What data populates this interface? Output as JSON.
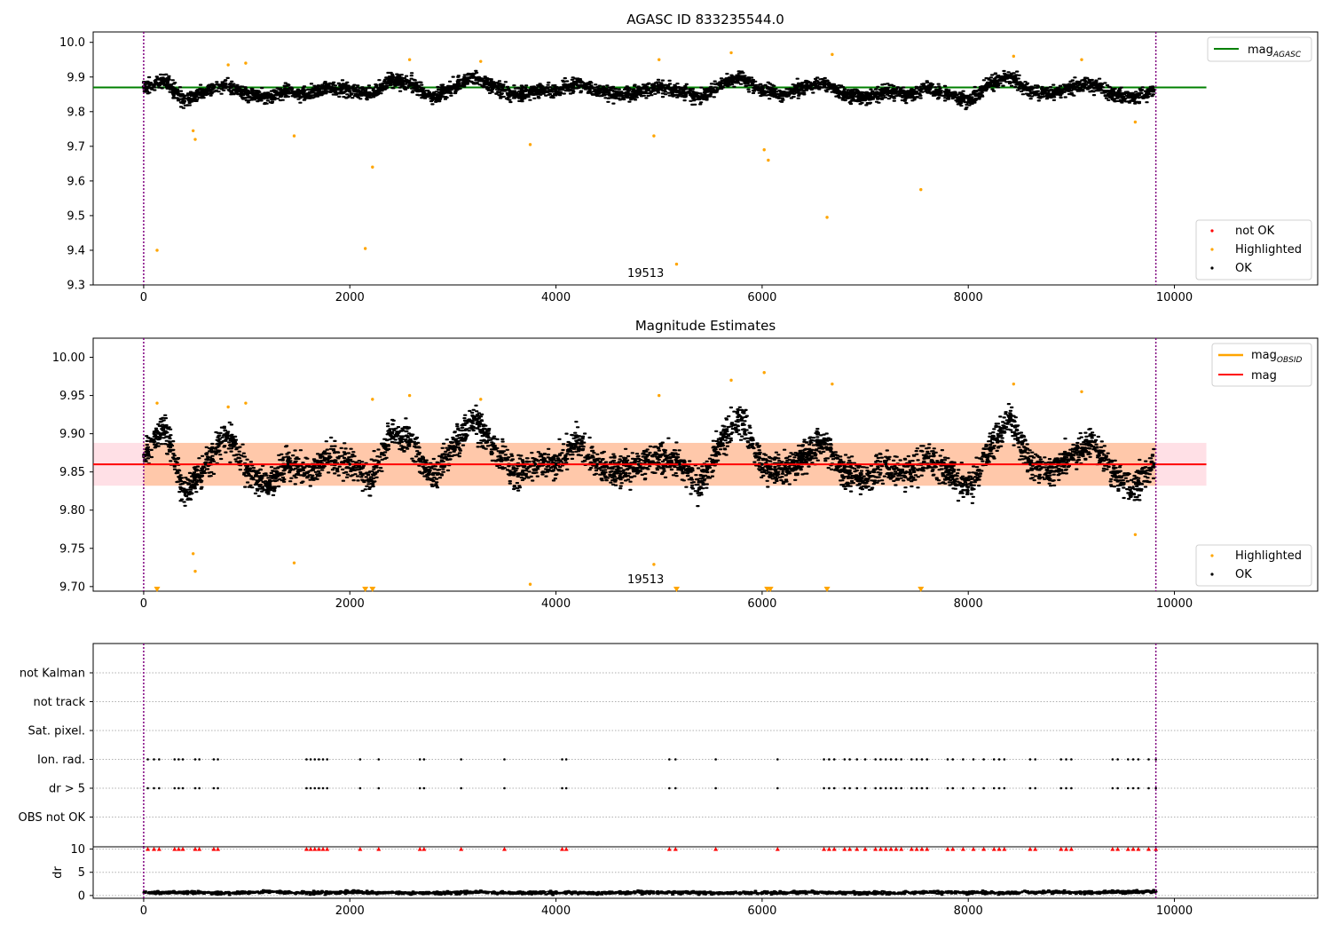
{
  "chart_data": [
    {
      "type": "scatter",
      "title": "AGASC ID 833235544.0",
      "xlim": [
        -490,
        11390
      ],
      "ylim": [
        9.3,
        10.03
      ],
      "xticks": [
        0,
        2000,
        4000,
        6000,
        8000,
        10000
      ],
      "yticks": [
        9.3,
        9.4,
        9.5,
        9.6,
        9.7,
        9.8,
        9.9,
        10.0
      ],
      "ytick_labels": [
        "9.3",
        "9.4",
        "9.5",
        "9.6",
        "9.7",
        "9.8",
        "9.9",
        "10.0"
      ],
      "vlines": [
        0,
        9820
      ],
      "obsid_label": "19513",
      "obsid_label_x": 4870,
      "hlines": [
        {
          "name": "mag_AGASC",
          "y": 9.87,
          "x_range": [
            -490,
            10310
          ],
          "color": "#008000"
        }
      ],
      "legend_upper": {
        "position": "upper-right",
        "entries": [
          {
            "label": "mag",
            "sub": "AGASC",
            "color": "#008000"
          }
        ]
      },
      "legend_lower": {
        "position": "lower-right",
        "entries": [
          {
            "label": "not OK",
            "color": "#ff0000"
          },
          {
            "label": "Highlighted",
            "color": "#ffa500"
          },
          {
            "label": "OK",
            "color": "#000000"
          }
        ]
      },
      "series": [
        {
          "name": "OK",
          "color": "#000000",
          "x": [
            0,
            200,
            400,
            600,
            800,
            1000,
            1200,
            1400,
            1600,
            1800,
            2000,
            2200,
            2400,
            2600,
            2800,
            3000,
            3200,
            3400,
            3600,
            3800,
            4000,
            4200,
            4400,
            4600,
            4800,
            5000,
            5200,
            5400,
            5600,
            5800,
            6000,
            6200,
            6400,
            6600,
            6800,
            7000,
            7200,
            7400,
            7600,
            7800,
            8000,
            8200,
            8400,
            8600,
            8800,
            9000,
            9200,
            9400,
            9600,
            9800
          ],
          "y": [
            9.87,
            9.89,
            9.83,
            9.86,
            9.88,
            9.85,
            9.84,
            9.86,
            9.85,
            9.87,
            9.86,
            9.85,
            9.89,
            9.88,
            9.84,
            9.87,
            9.9,
            9.87,
            9.85,
            9.86,
            9.86,
            9.88,
            9.86,
            9.85,
            9.86,
            9.87,
            9.86,
            9.84,
            9.88,
            9.9,
            9.86,
            9.85,
            9.87,
            9.88,
            9.85,
            9.84,
            9.86,
            9.85,
            9.87,
            9.85,
            9.83,
            9.88,
            9.9,
            9.86,
            9.85,
            9.87,
            9.88,
            9.85,
            9.84,
            9.86
          ]
        },
        {
          "name": "Highlighted",
          "color": "#ffa500",
          "x": [
            130,
            480,
            500,
            820,
            990,
            1460,
            2150,
            2220,
            2580,
            3270,
            3750,
            4950,
            5000,
            5170,
            5700,
            6020,
            6060,
            6630,
            6680,
            7540,
            8440,
            9100,
            9620
          ],
          "y": [
            9.4,
            9.745,
            9.72,
            9.935,
            9.94,
            9.73,
            9.405,
            9.64,
            9.95,
            9.945,
            9.705,
            9.73,
            9.95,
            9.36,
            9.97,
            9.69,
            9.66,
            9.495,
            9.965,
            9.575,
            9.96,
            9.95,
            9.77
          ]
        },
        {
          "name": "not OK",
          "color": "#ff0000",
          "x": [],
          "y": []
        }
      ]
    },
    {
      "type": "scatter",
      "title": "Magnitude Estimates",
      "xlim": [
        -490,
        11390
      ],
      "ylim": [
        9.694,
        10.025
      ],
      "xticks": [
        0,
        2000,
        4000,
        6000,
        8000,
        10000
      ],
      "yticks": [
        9.7,
        9.75,
        9.8,
        9.85,
        9.9,
        9.95,
        10.0
      ],
      "ytick_labels": [
        "9.70",
        "9.75",
        "9.80",
        "9.85",
        "9.90",
        "9.95",
        "10.00"
      ],
      "vlines": [
        0,
        9820
      ],
      "obsid_label": "19513",
      "obsid_label_x": 4870,
      "band": {
        "x_range": [
          0,
          9820
        ],
        "y_range": [
          9.832,
          9.888
        ],
        "color": "#ffc8aa"
      },
      "band_outer": {
        "x_range": [
          -490,
          10310
        ],
        "y_range": [
          9.832,
          9.888
        ],
        "color": "#ffe0e6"
      },
      "hlines": [
        {
          "name": "mag",
          "y": 9.86,
          "x_range": [
            -490,
            10310
          ],
          "color": "#ff0000"
        }
      ],
      "legend_upper": {
        "position": "upper-right",
        "entries": [
          {
            "label": "mag",
            "sub": "OBSID",
            "color": "#ffa500"
          },
          {
            "label": "mag",
            "sub": "",
            "color": "#ff0000"
          }
        ]
      },
      "legend_lower": {
        "position": "lower-right",
        "entries": [
          {
            "label": "Highlighted",
            "color": "#ffa500"
          },
          {
            "label": "OK",
            "color": "#000000"
          }
        ]
      },
      "series": [
        {
          "name": "OK",
          "color": "#000000",
          "x": [
            0,
            200,
            400,
            600,
            800,
            1000,
            1200,
            1400,
            1600,
            1800,
            2000,
            2200,
            2400,
            2600,
            2800,
            3000,
            3200,
            3400,
            3600,
            3800,
            4000,
            4200,
            4400,
            4600,
            4800,
            5000,
            5200,
            5400,
            5600,
            5800,
            6000,
            6200,
            6400,
            6600,
            6800,
            7000,
            7200,
            7400,
            7600,
            7800,
            8000,
            8200,
            8400,
            8600,
            8800,
            9000,
            9200,
            9400,
            9600,
            9800
          ],
          "y": [
            9.87,
            9.91,
            9.82,
            9.86,
            9.9,
            9.85,
            9.83,
            9.86,
            9.85,
            9.87,
            9.86,
            9.84,
            9.9,
            9.89,
            9.84,
            9.88,
            9.92,
            9.88,
            9.85,
            9.86,
            9.86,
            9.89,
            9.86,
            9.85,
            9.86,
            9.87,
            9.86,
            9.83,
            9.89,
            9.92,
            9.86,
            9.85,
            9.87,
            9.89,
            9.85,
            9.84,
            9.86,
            9.85,
            9.87,
            9.85,
            9.83,
            9.88,
            9.92,
            9.86,
            9.85,
            9.87,
            9.89,
            9.85,
            9.83,
            9.86
          ]
        },
        {
          "name": "Highlighted",
          "color": "#ffa500",
          "x": [
            130,
            480,
            500,
            820,
            990,
            1460,
            2220,
            2580,
            3270,
            3750,
            4950,
            5000,
            5700,
            6020,
            6680,
            8440,
            9100,
            9620
          ],
          "y": [
            9.94,
            9.743,
            9.72,
            9.935,
            9.94,
            9.731,
            9.945,
            9.95,
            9.945,
            9.703,
            9.729,
            9.95,
            9.97,
            9.98,
            9.965,
            9.965,
            9.955,
            9.768
          ]
        },
        {
          "name": "Out of range",
          "color": "#ffa500",
          "x": [
            130,
            2150,
            2220,
            5170,
            6050,
            6080,
            6630,
            7540
          ],
          "y": [
            9.694,
            9.694,
            9.694,
            9.694,
            9.694,
            9.694,
            9.694,
            9.694
          ]
        }
      ]
    },
    {
      "type": "scatter",
      "xlim": [
        -490,
        11390
      ],
      "xticks": [
        0,
        2000,
        4000,
        6000,
        8000,
        10000
      ],
      "vlines": [
        0,
        9820
      ],
      "flag_rows": [
        "not Kalman",
        "not track",
        "Sat. pixel.",
        "Ion. rad.",
        "dr > 5",
        "OBS not OK"
      ],
      "flag_series": [
        {
          "name": "Ion. rad.",
          "x": [
            40,
            100,
            150,
            300,
            340,
            380,
            500,
            540,
            680,
            720,
            1580,
            1620,
            1660,
            1700,
            1740,
            1780,
            2100,
            2280,
            2680,
            2720,
            3080,
            3500,
            4060,
            4100,
            5100,
            5160,
            5550,
            6150,
            6600,
            6650,
            6700,
            6800,
            6850,
            6920,
            7000,
            7100,
            7150,
            7200,
            7250,
            7300,
            7350,
            7450,
            7500,
            7550,
            7600,
            7800,
            7850,
            7950,
            8050,
            8150,
            8250,
            8300,
            8350,
            8600,
            8650,
            8900,
            8950,
            9000,
            9400,
            9450,
            9550,
            9600,
            9650,
            9750,
            9820
          ]
        },
        {
          "name": "dr > 5",
          "x": [
            40,
            100,
            150,
            300,
            340,
            380,
            500,
            540,
            680,
            720,
            1580,
            1620,
            1660,
            1700,
            1740,
            1780,
            2100,
            2280,
            2680,
            2720,
            3080,
            3500,
            4060,
            4100,
            5100,
            5160,
            5550,
            6150,
            6600,
            6650,
            6700,
            6800,
            6850,
            6920,
            7000,
            7100,
            7150,
            7200,
            7250,
            7300,
            7350,
            7450,
            7500,
            7550,
            7600,
            7800,
            7850,
            7950,
            8050,
            8150,
            8250,
            8300,
            8350,
            8600,
            8650,
            8900,
            8950,
            9000,
            9400,
            9450,
            9550,
            9600,
            9650,
            9750,
            9820
          ]
        }
      ],
      "dr_panel": {
        "ylabel": "dr",
        "ylim": [
          -0.6,
          10.5
        ],
        "yticks": [
          0,
          5,
          10
        ],
        "ytick_labels": [
          "0",
          "5",
          "10"
        ],
        "clipped_value": 10,
        "clipped_x": [
          40,
          100,
          150,
          300,
          340,
          380,
          500,
          540,
          680,
          720,
          1580,
          1620,
          1660,
          1700,
          1740,
          1780,
          2100,
          2280,
          2680,
          2720,
          3080,
          3500,
          4060,
          4100,
          5100,
          5160,
          5550,
          6150,
          6600,
          6650,
          6700,
          6800,
          6850,
          6920,
          7000,
          7100,
          7150,
          7200,
          7250,
          7300,
          7350,
          7450,
          7500,
          7550,
          7600,
          7800,
          7850,
          7950,
          8050,
          8150,
          8250,
          8300,
          8350,
          8600,
          8650,
          8900,
          8950,
          9000,
          9400,
          9450,
          9550,
          9600,
          9650,
          9750,
          9820
        ],
        "x": [
          0,
          400,
          800,
          1200,
          1600,
          2000,
          2400,
          2800,
          3200,
          3600,
          4000,
          4400,
          4800,
          5200,
          5600,
          6000,
          6400,
          6800,
          7200,
          7600,
          8000,
          8400,
          8800,
          9200,
          9600
        ],
        "y": [
          0.6,
          0.7,
          0.5,
          0.8,
          0.6,
          0.7,
          0.6,
          0.5,
          0.7,
          0.6,
          0.6,
          0.5,
          0.7,
          0.6,
          0.5,
          0.6,
          0.7,
          0.6,
          0.5,
          0.7,
          0.6,
          0.6,
          0.7,
          0.6,
          0.8
        ]
      }
    }
  ]
}
